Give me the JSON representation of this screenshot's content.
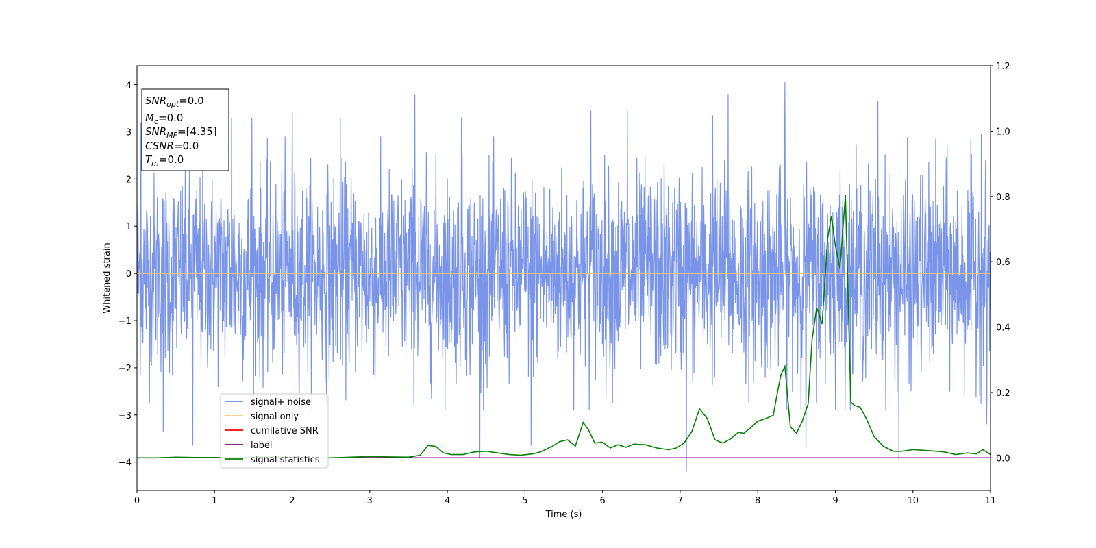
{
  "chart_data": {
    "type": "line",
    "xlabel": "Time (s)",
    "ylabel": "Whitened strain",
    "xlim": [
      0,
      11
    ],
    "ylim": [
      -4.6,
      4.4
    ],
    "ylim_right": [
      -0.1,
      1.2
    ],
    "x_ticks": [
      0,
      1,
      2,
      3,
      4,
      5,
      6,
      7,
      8,
      9,
      10,
      11
    ],
    "y_ticks": [
      -4,
      -3,
      -2,
      -1,
      0,
      1,
      2,
      3,
      4
    ],
    "y_ticks_right": [
      0.0,
      0.2,
      0.4,
      0.6,
      0.8,
      1.0,
      1.2
    ],
    "grid": false,
    "legend_position": "lower-left",
    "colors": {
      "signal_noise": "#6a88e6",
      "signal_only": "#ffc870",
      "cumulative_snr": "#ff0000",
      "label": "#800080",
      "signal_statistics": "#008000"
    },
    "annotation": [
      {
        "sym": "SNR",
        "sub": "opt",
        "value": "=0.0"
      },
      {
        "sym": "M",
        "sub": "c",
        "value": "=0.0"
      },
      {
        "sym": "SNR",
        "sub": "MF",
        "value": "=[4.35]"
      },
      {
        "sym": "CSNR",
        "sub": "",
        "value": "=0.0"
      },
      {
        "sym": "T",
        "sub": "m",
        "value": "=0.0"
      }
    ],
    "series": [
      {
        "name": "signal+ noise",
        "axis": "left",
        "style": "noise band, Gaussian-like whitened strain around 0",
        "peaks": [
          [
            0.05,
            3.2
          ],
          [
            0.34,
            -3.35
          ],
          [
            0.72,
            -3.65
          ],
          [
            1.22,
            3.3
          ],
          [
            1.48,
            3.3
          ],
          [
            2.0,
            3.4
          ],
          [
            2.62,
            3.3
          ],
          [
            3.58,
            3.8
          ],
          [
            4.18,
            3.3
          ],
          [
            4.42,
            -3.9
          ],
          [
            5.08,
            -3.65
          ],
          [
            5.85,
            3.45
          ],
          [
            6.32,
            3.45
          ],
          [
            7.08,
            -4.2
          ],
          [
            7.42,
            3.35
          ],
          [
            7.62,
            3.8
          ],
          [
            8.35,
            4.05
          ],
          [
            8.62,
            -3.7
          ],
          [
            9.55,
            3.65
          ],
          [
            9.82,
            -3.95
          ],
          [
            10.88,
            2.95
          ],
          [
            10.95,
            -3.2
          ]
        ]
      },
      {
        "name": "signal only",
        "axis": "left",
        "x": [
          0,
          11
        ],
        "y": [
          0,
          0
        ]
      },
      {
        "name": "cumilative SNR",
        "axis": "right",
        "x": [],
        "y": []
      },
      {
        "name": "label",
        "axis": "right",
        "x": [
          0,
          11
        ],
        "y": [
          0.0,
          0.0
        ]
      },
      {
        "name": "signal statistics",
        "axis": "right",
        "x": [
          0,
          0.25,
          0.5,
          0.75,
          1.0,
          1.25,
          1.5,
          1.75,
          2.0,
          2.25,
          2.5,
          2.75,
          3.0,
          3.25,
          3.5,
          3.65,
          3.75,
          3.85,
          3.95,
          4.05,
          4.2,
          4.35,
          4.5,
          4.65,
          4.8,
          4.95,
          5.1,
          5.2,
          5.35,
          5.45,
          5.55,
          5.65,
          5.75,
          5.82,
          5.9,
          6.0,
          6.1,
          6.2,
          6.3,
          6.4,
          6.55,
          6.7,
          6.85,
          6.95,
          7.05,
          7.15,
          7.25,
          7.35,
          7.45,
          7.55,
          7.65,
          7.75,
          7.82,
          7.9,
          8.0,
          8.1,
          8.2,
          8.25,
          8.3,
          8.35,
          8.42,
          8.5,
          8.57,
          8.65,
          8.7,
          8.76,
          8.83,
          8.9,
          8.95,
          9.0,
          9.06,
          9.13,
          9.2,
          9.25,
          9.32,
          9.4,
          9.5,
          9.62,
          9.75,
          9.85,
          10.0,
          10.2,
          10.4,
          10.55,
          10.7,
          10.82,
          10.9,
          11.0
        ],
        "y": [
          0.0,
          0.0,
          0.002,
          0.001,
          0.001,
          0.0,
          0.002,
          0.003,
          0.001,
          0.0,
          0.0,
          0.002,
          0.004,
          0.003,
          0.002,
          0.008,
          0.038,
          0.035,
          0.015,
          0.01,
          0.01,
          0.018,
          0.02,
          0.015,
          0.01,
          0.008,
          0.012,
          0.018,
          0.035,
          0.05,
          0.055,
          0.036,
          0.108,
          0.085,
          0.045,
          0.048,
          0.03,
          0.04,
          0.032,
          0.042,
          0.04,
          0.03,
          0.025,
          0.03,
          0.045,
          0.08,
          0.15,
          0.12,
          0.055,
          0.045,
          0.058,
          0.078,
          0.075,
          0.09,
          0.112,
          0.12,
          0.13,
          0.195,
          0.255,
          0.28,
          0.095,
          0.075,
          0.11,
          0.165,
          0.36,
          0.46,
          0.41,
          0.67,
          0.74,
          0.65,
          0.58,
          0.805,
          0.17,
          0.16,
          0.155,
          0.12,
          0.065,
          0.035,
          0.02,
          0.02,
          0.025,
          0.022,
          0.018,
          0.01,
          0.015,
          0.012,
          0.025,
          0.01
        ]
      }
    ]
  }
}
